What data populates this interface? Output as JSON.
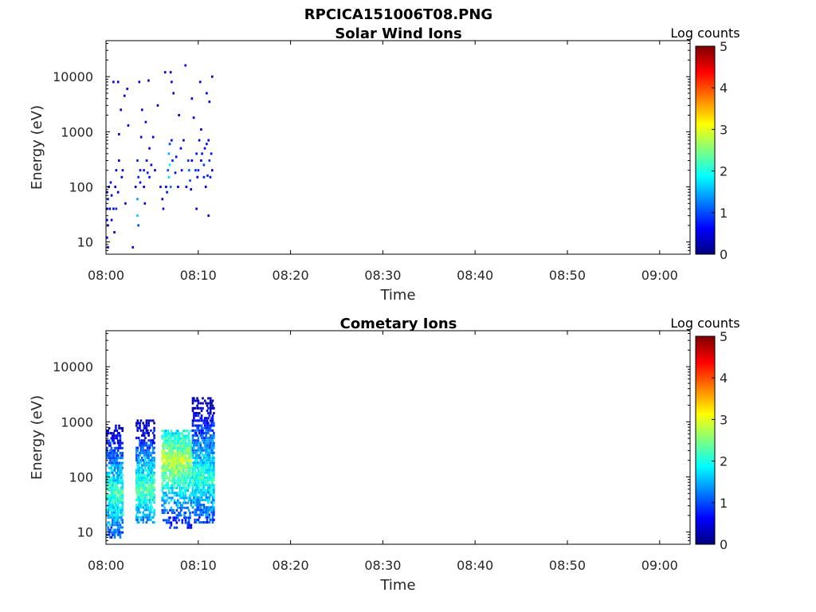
{
  "figure_title": "RPCICA151006T08.PNG",
  "colormap": [
    "#00007f",
    "#0000ff",
    "#007fff",
    "#00ffff",
    "#7fff7f",
    "#ffff00",
    "#ff7f00",
    "#ff0000",
    "#7f0000"
  ],
  "chart_data": [
    {
      "type": "heatmap",
      "title": "Solar Wind Ions",
      "xlabel": "Time",
      "ylabel": "Energy (eV)",
      "x_ticks": [
        "08:00",
        "08:10",
        "08:20",
        "08:30",
        "08:40",
        "08:50",
        "09:00"
      ],
      "x_range_minutes": [
        0,
        63.3
      ],
      "y_ticks": [
        10,
        100,
        1000,
        10000
      ],
      "y_tick_labels": [
        "10",
        "100",
        "1000",
        "10000"
      ],
      "y_scale": "log",
      "ylim": [
        6,
        45000
      ],
      "colorbar": {
        "label": "Log counts",
        "range": [
          0,
          5
        ],
        "ticks": [
          "0",
          "1",
          "2",
          "3",
          "4",
          "5"
        ]
      },
      "data": [
        [
          0.0,
          80,
          0.5
        ],
        [
          0.0,
          40,
          0.6
        ],
        [
          0.0,
          25,
          0.4
        ],
        [
          0.0,
          12,
          0.3
        ],
        [
          0.1,
          60,
          0.8
        ],
        [
          0.1,
          8,
          0.5
        ],
        [
          0.1,
          20,
          0.5
        ],
        [
          0.2,
          100,
          0.4
        ],
        [
          0.3,
          40,
          0.5
        ],
        [
          0.4,
          120,
          0.6
        ],
        [
          0.5,
          25,
          0.5
        ],
        [
          0.5,
          70,
          0.6
        ],
        [
          0.7,
          8000,
          0.6
        ],
        [
          0.7,
          40,
          0.7
        ],
        [
          0.8,
          15,
          0.4
        ],
        [
          0.9,
          100,
          0.5
        ],
        [
          1.0,
          200,
          0.5
        ],
        [
          1.0,
          40,
          0.8
        ],
        [
          1.2,
          8000,
          0.5
        ],
        [
          1.2,
          80,
          0.4
        ],
        [
          1.3,
          300,
          0.5
        ],
        [
          1.3,
          900,
          0.4
        ],
        [
          1.5,
          2500,
          0.5
        ],
        [
          1.6,
          150,
          0.4
        ],
        [
          1.7,
          200,
          0.6
        ],
        [
          1.9,
          4500,
          0.5
        ],
        [
          2.0,
          50,
          0.4
        ],
        [
          2.2,
          6000,
          0.5
        ],
        [
          2.3,
          1300,
          0.5
        ],
        [
          2.8,
          8,
          0.5
        ],
        [
          3.1,
          100,
          0.6
        ],
        [
          3.3,
          300,
          0.8
        ],
        [
          3.3,
          60,
          1.4
        ],
        [
          3.3,
          30,
          1.6
        ],
        [
          3.4,
          150,
          0.8
        ],
        [
          3.4,
          20,
          1.0
        ],
        [
          3.5,
          8000,
          0.4
        ],
        [
          3.6,
          200,
          0.7
        ],
        [
          3.6,
          120,
          0.7
        ],
        [
          3.7,
          800,
          0.4
        ],
        [
          3.8,
          2500,
          0.5
        ],
        [
          4.0,
          100,
          0.6
        ],
        [
          4.0,
          200,
          0.7
        ],
        [
          4.1,
          50,
          0.6
        ],
        [
          4.2,
          1500,
          0.5
        ],
        [
          4.3,
          300,
          0.7
        ],
        [
          4.4,
          180,
          0.8
        ],
        [
          4.5,
          8500,
          0.5
        ],
        [
          4.6,
          150,
          0.7
        ],
        [
          4.6,
          500,
          0.5
        ],
        [
          4.8,
          250,
          0.6
        ],
        [
          5.0,
          800,
          0.5
        ],
        [
          5.2,
          200,
          0.5
        ],
        [
          5.5,
          3000,
          0.4
        ],
        [
          5.8,
          100,
          0.6
        ],
        [
          6.0,
          60,
          0.5
        ],
        [
          6.1,
          40,
          0.6
        ],
        [
          6.3,
          12000,
          0.5
        ],
        [
          6.4,
          100,
          0.6
        ],
        [
          6.5,
          80,
          0.7
        ],
        [
          6.6,
          200,
          1.0
        ],
        [
          6.7,
          400,
          1.5
        ],
        [
          6.7,
          150,
          1.7
        ],
        [
          6.8,
          250,
          1.8
        ],
        [
          6.8,
          600,
          1.0
        ],
        [
          6.9,
          12000,
          0.5
        ],
        [
          6.9,
          100,
          1.2
        ],
        [
          7.0,
          700,
          0.6
        ],
        [
          7.0,
          8000,
          0.5
        ],
        [
          7.1,
          300,
          0.8
        ],
        [
          7.2,
          5000,
          0.4
        ],
        [
          7.4,
          180,
          0.7
        ],
        [
          7.5,
          350,
          0.6
        ],
        [
          7.7,
          100,
          0.6
        ],
        [
          7.8,
          2000,
          0.4
        ],
        [
          8.0,
          500,
          0.6
        ],
        [
          8.1,
          200,
          0.7
        ],
        [
          8.3,
          700,
          0.5
        ],
        [
          8.5,
          16000,
          0.5
        ],
        [
          8.6,
          100,
          0.6
        ],
        [
          8.8,
          300,
          0.9
        ],
        [
          8.9,
          200,
          1.1
        ],
        [
          9.0,
          130,
          1.0
        ],
        [
          9.1,
          90,
          0.6
        ],
        [
          9.2,
          300,
          0.6
        ],
        [
          9.2,
          4000,
          0.5
        ],
        [
          9.4,
          1800,
          0.5
        ],
        [
          9.6,
          200,
          0.8
        ],
        [
          9.7,
          400,
          0.7
        ],
        [
          9.7,
          40,
          0.5
        ],
        [
          9.8,
          150,
          0.6
        ],
        [
          9.9,
          200,
          0.8
        ],
        [
          10.0,
          700,
          0.5
        ],
        [
          10.1,
          8000,
          0.5
        ],
        [
          10.2,
          1100,
          0.5
        ],
        [
          10.2,
          300,
          0.6
        ],
        [
          10.3,
          400,
          0.7
        ],
        [
          10.5,
          250,
          0.9
        ],
        [
          10.5,
          150,
          0.8
        ],
        [
          10.6,
          500,
          0.6
        ],
        [
          10.7,
          100,
          0.6
        ],
        [
          10.8,
          5000,
          0.5
        ],
        [
          10.8,
          600,
          0.7
        ],
        [
          10.9,
          160,
          0.8
        ],
        [
          11.0,
          700,
          0.6
        ],
        [
          11.0,
          30,
          0.4
        ],
        [
          11.1,
          300,
          0.9
        ],
        [
          11.1,
          3500,
          0.5
        ],
        [
          11.2,
          150,
          0.7
        ],
        [
          11.3,
          400,
          0.7
        ],
        [
          11.4,
          10000,
          0.5
        ],
        [
          11.4,
          200,
          0.6
        ]
      ]
    },
    {
      "type": "heatmap",
      "title": "Cometary Ions",
      "xlabel": "Time",
      "ylabel": "Energy (eV)",
      "x_ticks": [
        "08:00",
        "08:10",
        "08:20",
        "08:30",
        "08:40",
        "08:50",
        "09:00"
      ],
      "x_range_minutes": [
        0,
        63.3
      ],
      "y_ticks": [
        10,
        100,
        1000,
        10000
      ],
      "y_tick_labels": [
        "10",
        "100",
        "1000",
        "10000"
      ],
      "y_scale": "log",
      "ylim": [
        6,
        45000
      ],
      "colorbar": {
        "label": "Log counts",
        "range": [
          0,
          5
        ],
        "ticks": [
          "0",
          "1",
          "2",
          "3",
          "4",
          "5"
        ]
      },
      "bursts": [
        {
          "t_start": 0.0,
          "t_end": 1.8,
          "e_min": 8,
          "e_max": 900,
          "peak_e": 50,
          "peak_log": 2.2
        },
        {
          "t_start": 3.2,
          "t_end": 5.2,
          "e_min": 15,
          "e_max": 1100,
          "peak_e": 60,
          "peak_log": 2.3
        },
        {
          "t_start": 6.0,
          "t_end": 9.2,
          "e_min": 12,
          "e_max": 700,
          "peak_e": 200,
          "peak_log": 2.8
        },
        {
          "t_start": 9.3,
          "t_end": 11.6,
          "e_min": 15,
          "e_max": 2800,
          "peak_e": 100,
          "peak_log": 2.1
        }
      ]
    }
  ]
}
